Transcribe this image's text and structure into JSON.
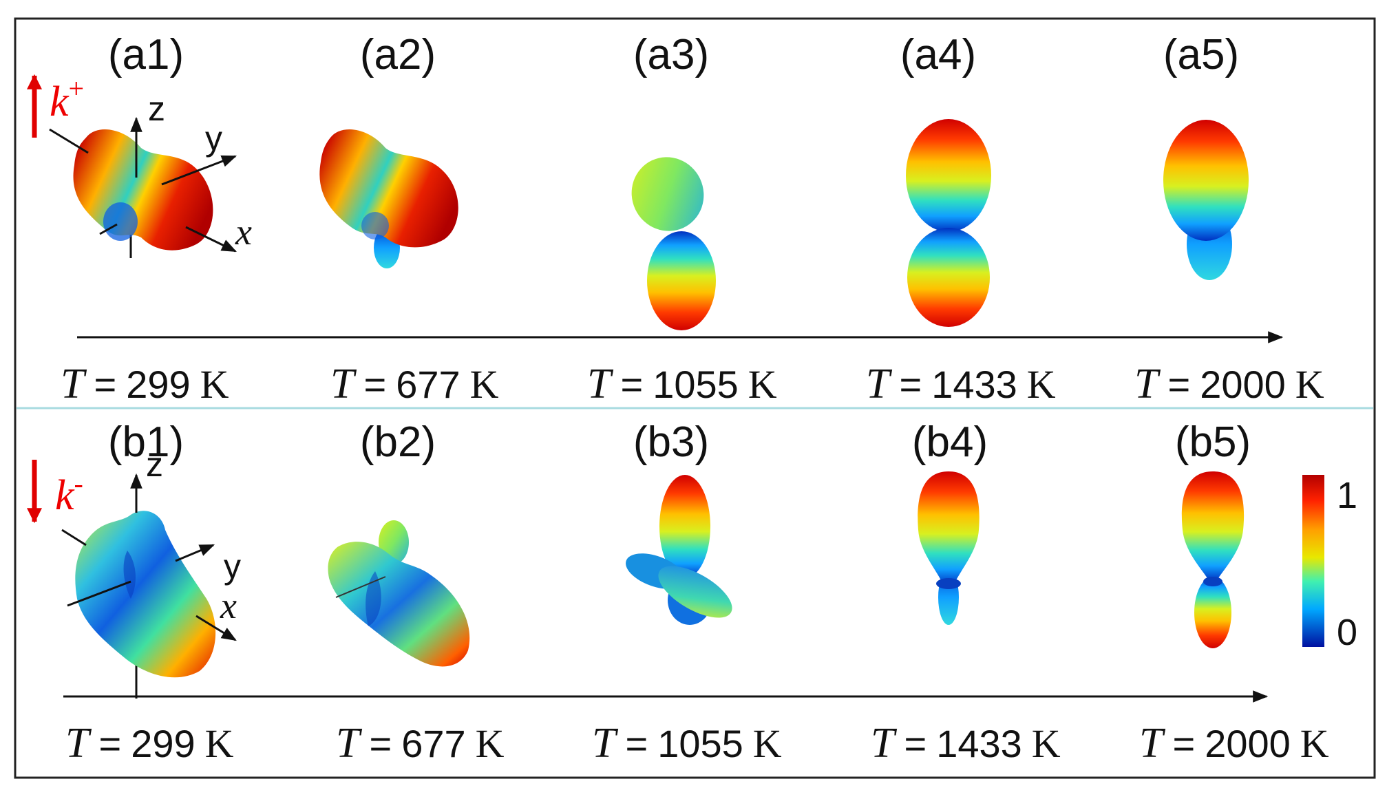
{
  "rows": [
    {
      "id": "a",
      "panels": [
        "(a1)",
        "(a2)",
        "(a3)",
        "(a4)",
        "(a5)"
      ],
      "wave_vector": {
        "symbol": "k",
        "sign": "+"
      },
      "axes": {
        "x": "x",
        "y": "y",
        "z": "z"
      }
    },
    {
      "id": "b",
      "panels": [
        "(b1)",
        "(b2)",
        "(b3)",
        "(b4)",
        "(b5)"
      ],
      "wave_vector": {
        "symbol": "k",
        "sign": "-"
      },
      "axes": {
        "x": "x",
        "y": "y",
        "z": "z"
      }
    }
  ],
  "temperature": {
    "symbol": "T",
    "equals": "=",
    "unit": "K",
    "values": [
      "299",
      "677",
      "1055",
      "1433",
      "2000"
    ]
  },
  "colorbar": {
    "max_label": "1",
    "min_label": "0",
    "colormap": "jet"
  },
  "colors": {
    "arrow": "#e00000",
    "divider": "#a8dbe0",
    "frame": "#222222"
  }
}
